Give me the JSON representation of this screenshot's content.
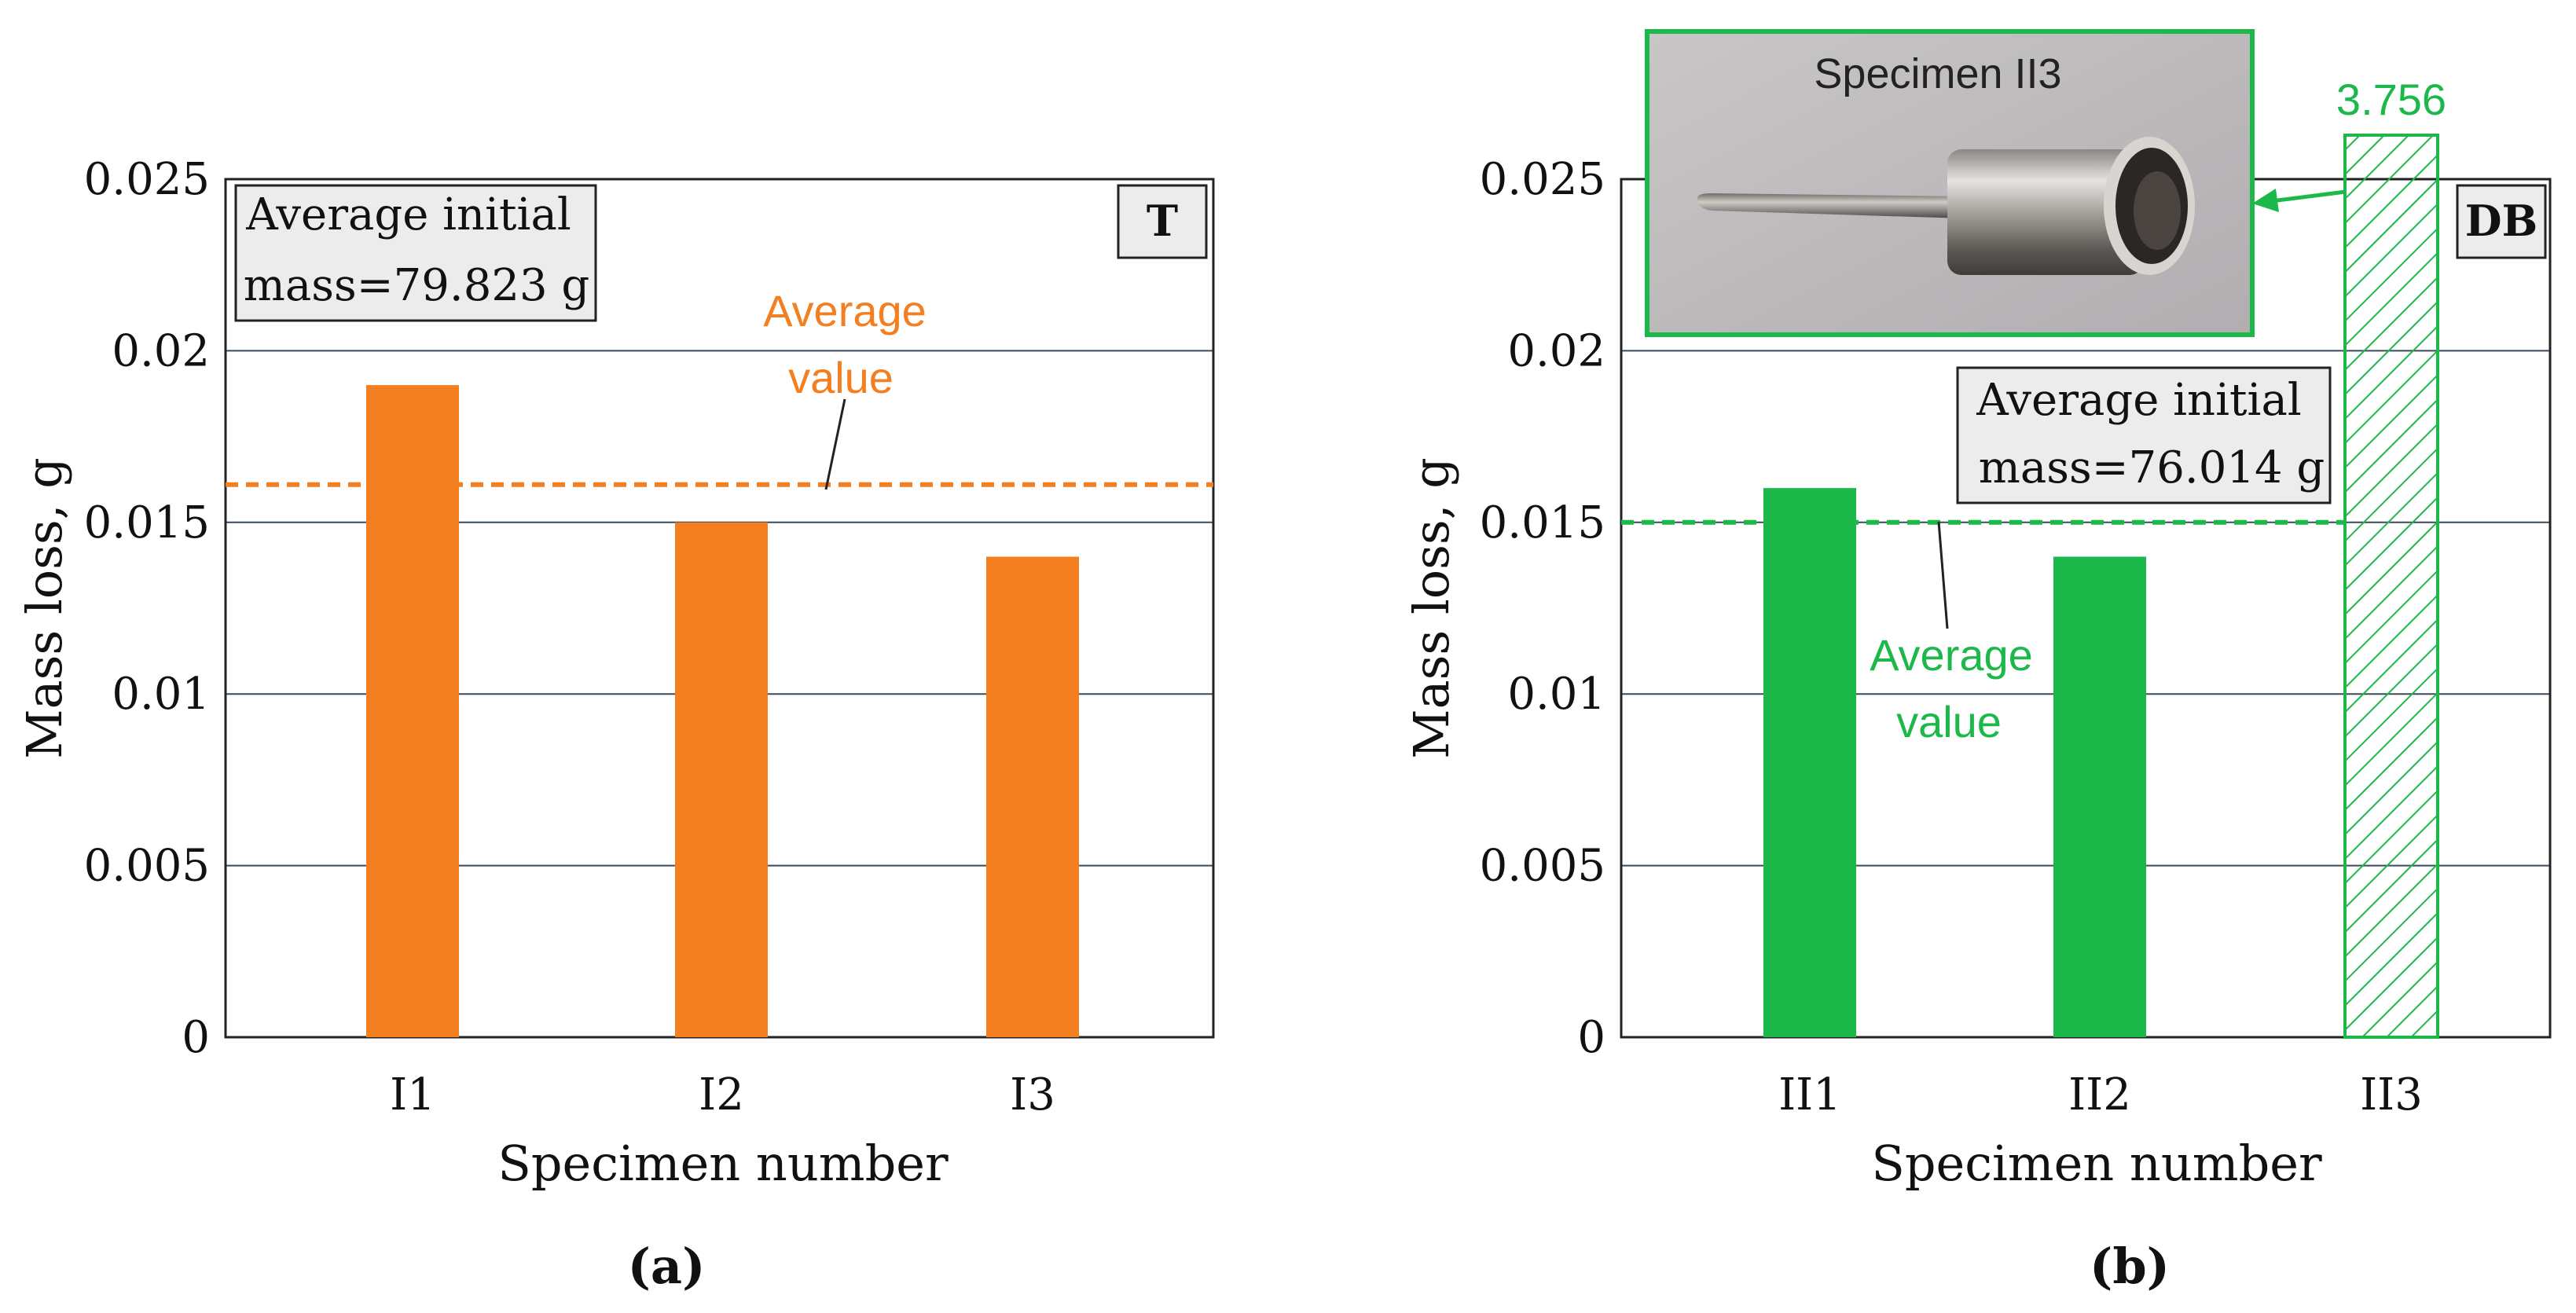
{
  "chart_data": [
    {
      "type": "bar",
      "panel_label": "(a)",
      "tag": "T",
      "categories": [
        "I1",
        "I2",
        "I3"
      ],
      "values": [
        0.019,
        0.015,
        0.014
      ],
      "xlabel": "Specimen number",
      "ylabel": "Mass loss, g",
      "ylim": [
        0,
        0.025
      ],
      "yticks": [
        "0",
        "0.005",
        "0.01",
        "0.015",
        "0.02",
        "0.025"
      ],
      "grid": true,
      "color": "#f47f20",
      "average_value": 0.0161,
      "average_label": [
        "Average",
        "value"
      ],
      "info_box": [
        "Average initial",
        "mass=79.823 g"
      ]
    },
    {
      "type": "bar",
      "panel_label": "(b)",
      "tag": "DB",
      "categories": [
        "II1",
        "II2",
        "II3"
      ],
      "values": [
        0.016,
        0.014,
        3.756
      ],
      "value_labels": [
        "",
        "",
        "3.756"
      ],
      "xlabel": "Specimen number",
      "ylabel": "Mass loss, g",
      "ylim": [
        0,
        0.025
      ],
      "yticks": [
        "0",
        "0.005",
        "0.01",
        "0.015",
        "0.02",
        "0.025"
      ],
      "grid": true,
      "color": "#1db84a",
      "hatched_category": "II3",
      "average_value": 0.015,
      "average_label": [
        "Average",
        "value"
      ],
      "info_box": [
        "Average initial",
        "mass=76.014 g"
      ],
      "photo_label": "Specimen II3"
    }
  ]
}
